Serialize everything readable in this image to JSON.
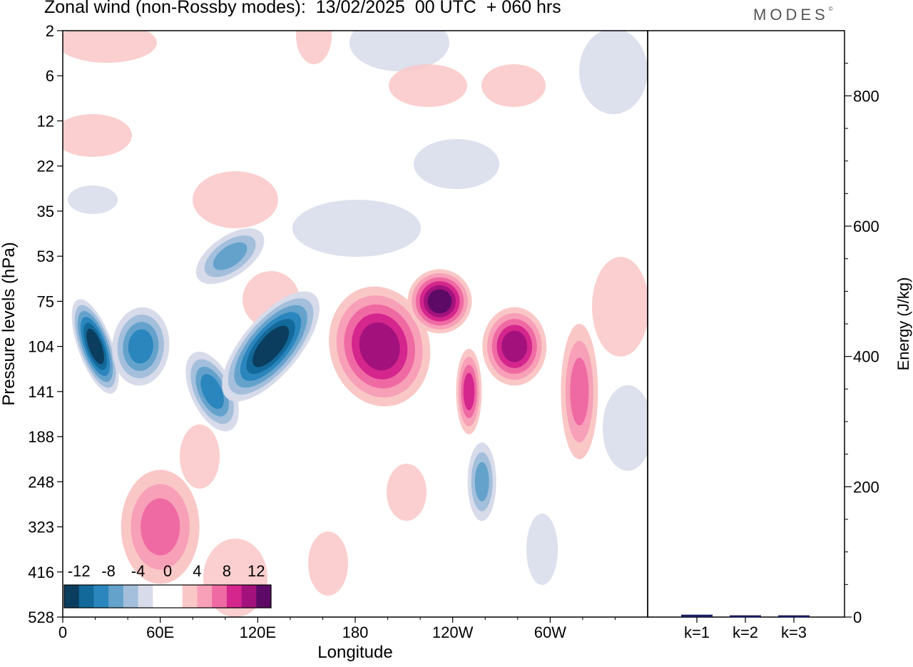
{
  "title": "Zonal wind (non-Rossby modes):  13/02/2025  00 UTC  + 060 hrs",
  "brand": "MODES",
  "brand_mark": "©",
  "chart_data": [
    {
      "type": "heatmap",
      "title": "Zonal wind (non-Rossby modes):  13/02/2025  00 UTC  + 060 hrs",
      "xlabel": "Longitude",
      "ylabel": "Pressure levels (hPa)",
      "x_ticks": [
        "0",
        "60E",
        "120E",
        "180",
        "120W",
        "60W"
      ],
      "x_tick_lon": [
        0,
        60,
        120,
        180,
        240,
        300
      ],
      "xlim": [
        0,
        360
      ],
      "y_ticks": [
        "2",
        "6",
        "12",
        "22",
        "35",
        "53",
        "75",
        "104",
        "141",
        "188",
        "248",
        "323",
        "416",
        "528"
      ],
      "colorbar": {
        "labels": [
          "-12",
          "-8",
          "-4",
          "0",
          "4",
          "8",
          "12"
        ],
        "colors": [
          "#0b3d5e",
          "#13699a",
          "#2a86bd",
          "#64a2cc",
          "#a3bfdc",
          "#d7dbea",
          "#ffffff",
          "#ffffff",
          "#fac7c7",
          "#f7a0b8",
          "#ef6aa3",
          "#d4268d",
          "#a3127c",
          "#5c0a66"
        ]
      },
      "features": [
        {
          "lon": 20,
          "level": "104",
          "value": -12
        },
        {
          "lon": 48,
          "level": "104",
          "value": -8
        },
        {
          "lon": 92,
          "level": "141",
          "value": -8
        },
        {
          "lon": 128,
          "level": "104",
          "value": -12
        },
        {
          "lon": 103,
          "level": "53",
          "value": -6
        },
        {
          "lon": 195,
          "level": "104",
          "value": 10
        },
        {
          "lon": 232,
          "level": "75",
          "value": 12
        },
        {
          "lon": 278,
          "level": "104",
          "value": 10
        },
        {
          "lon": 250,
          "level": "141",
          "value": 8
        },
        {
          "lon": 60,
          "level": "323",
          "value": 6
        },
        {
          "lon": 258,
          "level": "248",
          "value": -6
        },
        {
          "lon": 318,
          "level": "141",
          "value": 6
        }
      ]
    },
    {
      "type": "bar",
      "ylabel": "Energy (J/kg)",
      "categories": [
        "k=1",
        "k=2",
        "k=3"
      ],
      "values": [
        2,
        1,
        1
      ],
      "ylim": [
        0,
        900
      ],
      "y_ticks": [
        0,
        200,
        400,
        600,
        800
      ],
      "bar_color": "#1a1a5e"
    }
  ]
}
